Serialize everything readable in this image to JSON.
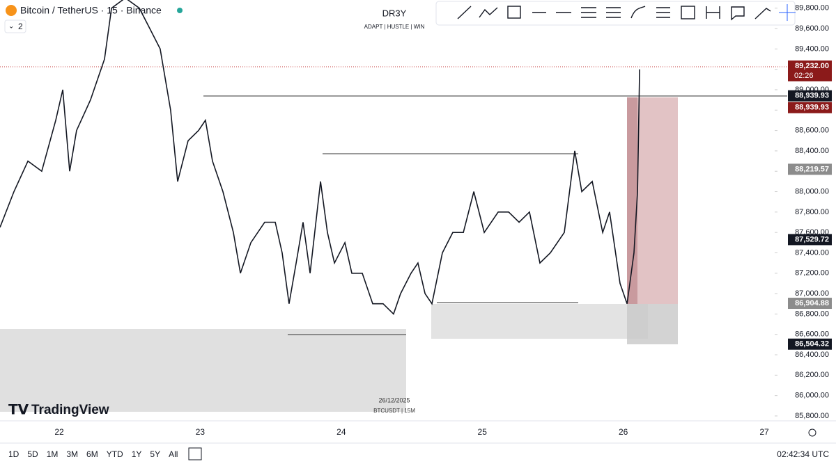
{
  "header": {
    "symbol": "Bitcoin / TetherUS · 15 · Binance",
    "indicator_count": "2",
    "watermark_title": "DR3Y",
    "watermark_subtitle": "ADAPT | HUSTLE | WIN",
    "date_note": "26/12/2025",
    "symbol_note": "BTCUSDT | 15M",
    "logo": "TradingView"
  },
  "footer": {
    "ranges": [
      "1D",
      "5D",
      "1M",
      "3M",
      "6M",
      "YTD",
      "1Y",
      "5Y",
      "All"
    ],
    "clock": "02:42:34 UTC"
  },
  "chart_data": {
    "type": "line",
    "color": "#131722",
    "xlim": [
      21.58,
      27.064
    ],
    "xticks": [
      22,
      23,
      24,
      25,
      26,
      27
    ],
    "ylim": [
      85752,
      89880
    ],
    "yticks": [
      {
        "value": 85800,
        "label": "85,800.00"
      },
      {
        "value": 86000,
        "label": "86,000.00"
      },
      {
        "value": 86200,
        "label": "86,200.00"
      },
      {
        "value": 86400,
        "label": "86,400.00"
      },
      {
        "value": 86600,
        "label": "86,600.00"
      },
      {
        "value": 86800,
        "label": "86,800.00"
      },
      {
        "value": 87000,
        "label": "87,000.00"
      },
      {
        "value": 87200,
        "label": "87,200.00"
      },
      {
        "value": 87400,
        "label": "87,400.00"
      },
      {
        "value": 87600,
        "label": "87,600.00"
      },
      {
        "value": 87800,
        "label": "87,800.00"
      },
      {
        "value": 88000,
        "label": "88,000.00"
      },
      {
        "value": 88200,
        "label": "88,200.00"
      },
      {
        "value": 88400,
        "label": "88,400.00"
      },
      {
        "value": 88600,
        "label": "88,600.00"
      },
      {
        "value": 88800,
        "label": "88,800.00"
      },
      {
        "value": 89000,
        "label": "89,000.00"
      },
      {
        "value": 89200,
        "label": "89,200.00"
      },
      {
        "value": 89400,
        "label": "89,400.00"
      },
      {
        "value": 89600,
        "label": "89,600.00"
      },
      {
        "value": 89800,
        "label": "89,800.00"
      }
    ],
    "series": [
      {
        "name": "BTCUSDT",
        "x": [
          21.58,
          21.679,
          21.778,
          21.876,
          21.975,
          22.025,
          22.074,
          22.123,
          22.222,
          22.321,
          22.371,
          22.469,
          22.568,
          22.642,
          22.716,
          22.79,
          22.84,
          22.914,
          22.988,
          23.037,
          23.087,
          23.161,
          23.235,
          23.285,
          23.359,
          23.457,
          23.532,
          23.581,
          23.63,
          23.68,
          23.729,
          23.779,
          23.853,
          23.902,
          23.952,
          24.026,
          24.075,
          24.149,
          24.223,
          24.297,
          24.371,
          24.421,
          24.495,
          24.544,
          24.594,
          24.643,
          24.717,
          24.791,
          24.866,
          24.94,
          25.014,
          25.113,
          25.187,
          25.261,
          25.335,
          25.409,
          25.483,
          25.582,
          25.656,
          25.706,
          25.78,
          25.854,
          25.903,
          25.977,
          26.027,
          26.076,
          26.101,
          26.116
        ],
        "values": [
          87650,
          88000,
          88300,
          88200,
          88700,
          89000,
          88200,
          88600,
          88900,
          89300,
          89800,
          89900,
          89800,
          89600,
          89400,
          88800,
          88100,
          88500,
          88600,
          88700,
          88300,
          88000,
          87600,
          87200,
          87500,
          87700,
          87700,
          87400,
          86900,
          87300,
          87700,
          87200,
          88100,
          87600,
          87300,
          87500,
          87200,
          87200,
          86900,
          86900,
          86800,
          87000,
          87200,
          87300,
          87000,
          86900,
          87400,
          87600,
          87600,
          88000,
          87600,
          87800,
          87800,
          87700,
          87800,
          87300,
          87400,
          87600,
          88400,
          88000,
          88100,
          87600,
          87800,
          87100,
          86900,
          87400,
          88000,
          89200
        ]
      }
    ],
    "price_labels": [
      {
        "value": 89232,
        "label": "89,232.00",
        "color": "#8b1a1a"
      },
      {
        "value": 88939.93,
        "label": "88,939.93",
        "color": "#131722"
      },
      {
        "value": 88939.93,
        "label": "88,939.93",
        "color": "#8b1a1a"
      },
      {
        "value": 88219.57,
        "label": "88,219.57",
        "color": "#8c8c8c"
      },
      {
        "value": 87529.72,
        "label": "87,529.72",
        "color": "#131722"
      },
      {
        "value": 86904.88,
        "label": "86,904.88",
        "color": "#8c8c8c"
      },
      {
        "value": 86504.32,
        "label": "86,504.32",
        "color": "#131722"
      }
    ],
    "countdown": "02:26"
  }
}
